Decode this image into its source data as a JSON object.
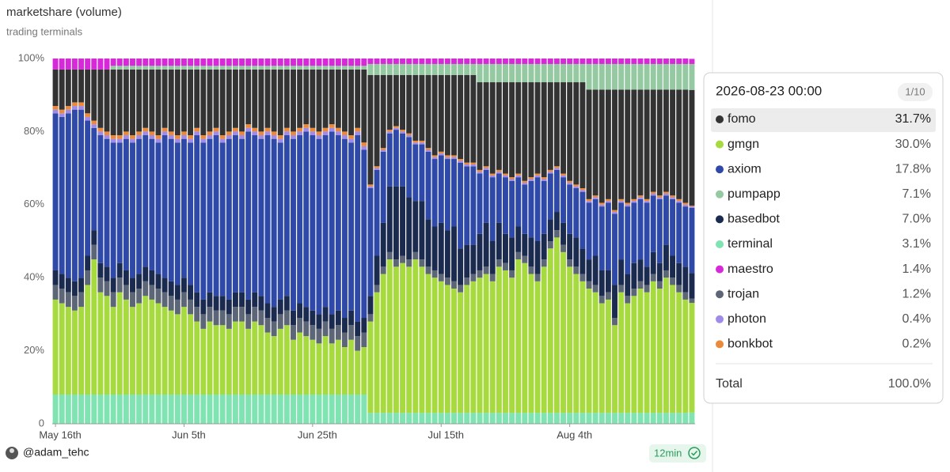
{
  "chart_data": {
    "type": "bar",
    "stacked": true,
    "title": "marketshare (volume)",
    "subtitle": "trading terminals",
    "categories": [
      "2026-05-16",
      "2026-05-17",
      "2026-05-18",
      "2026-05-19",
      "2026-05-20",
      "2026-05-21",
      "2026-05-22",
      "2026-05-23",
      "2026-05-24",
      "2026-05-25",
      "2026-05-26",
      "2026-05-27",
      "2026-05-28",
      "2026-05-29",
      "2026-05-30",
      "2026-05-31",
      "2026-06-01",
      "2026-06-02",
      "2026-06-03",
      "2026-06-04",
      "2026-06-05",
      "2026-06-06",
      "2026-06-07",
      "2026-06-08",
      "2026-06-09",
      "2026-06-10",
      "2026-06-11",
      "2026-06-12",
      "2026-06-13",
      "2026-06-14",
      "2026-06-15",
      "2026-06-16",
      "2026-06-17",
      "2026-06-18",
      "2026-06-19",
      "2026-06-20",
      "2026-06-21",
      "2026-06-22",
      "2026-06-23",
      "2026-06-24",
      "2026-06-25",
      "2026-06-26",
      "2026-06-27",
      "2026-06-28",
      "2026-06-29",
      "2026-06-30",
      "2026-07-01",
      "2026-07-02",
      "2026-07-03",
      "2026-07-04",
      "2026-07-05",
      "2026-07-06",
      "2026-07-07",
      "2026-07-08",
      "2026-07-09",
      "2026-07-10",
      "2026-07-11",
      "2026-07-12",
      "2026-07-13",
      "2026-07-14",
      "2026-07-15",
      "2026-07-16",
      "2026-07-17",
      "2026-07-18",
      "2026-07-19",
      "2026-07-20",
      "2026-07-21",
      "2026-07-22",
      "2026-07-23",
      "2026-07-24",
      "2026-07-25",
      "2026-07-26",
      "2026-07-27",
      "2026-07-28",
      "2026-07-29",
      "2026-07-30",
      "2026-07-31",
      "2026-08-01",
      "2026-08-02",
      "2026-08-03",
      "2026-08-04",
      "2026-08-05",
      "2026-08-06",
      "2026-08-07",
      "2026-08-08",
      "2026-08-09",
      "2026-08-10",
      "2026-08-11",
      "2026-08-12",
      "2026-08-13",
      "2026-08-14",
      "2026-08-15",
      "2026-08-16",
      "2026-08-17",
      "2026-08-18",
      "2026-08-19",
      "2026-08-20",
      "2026-08-21",
      "2026-08-22",
      "2026-08-23"
    ],
    "series": [
      {
        "name": "terminal",
        "color": "#7fe3b2",
        "values": [
          8,
          8,
          8,
          8,
          8,
          8,
          8,
          8,
          8,
          8,
          8,
          8,
          8,
          8,
          8,
          8,
          8,
          8,
          8,
          8,
          8,
          8,
          8,
          8,
          8,
          8,
          8,
          8,
          8,
          8,
          8,
          8,
          8,
          8,
          8,
          8,
          8,
          8,
          8,
          8,
          8,
          8,
          8,
          8,
          8,
          8,
          8,
          8,
          8,
          3,
          3,
          3,
          3,
          3,
          3,
          3,
          3,
          3,
          3,
          3,
          3,
          3,
          3,
          3,
          3,
          3,
          3,
          3,
          3,
          3,
          3,
          3,
          3,
          3,
          3,
          3,
          3,
          3,
          3,
          3,
          3,
          3,
          3,
          3,
          3,
          3,
          3,
          3,
          3,
          3,
          3,
          3,
          3,
          3,
          3,
          3,
          3,
          3,
          3,
          3.1
        ]
      },
      {
        "name": "gmgn",
        "color": "#a7da3e",
        "values": [
          26,
          25,
          24,
          23,
          24,
          30,
          37,
          28,
          27,
          24,
          28,
          26,
          24,
          25,
          27,
          26,
          25,
          24,
          23,
          22,
          24,
          22,
          20,
          18,
          20,
          19,
          19,
          18,
          20,
          20,
          18,
          20,
          19,
          17,
          16,
          18,
          19,
          15,
          17,
          16,
          15,
          14,
          16,
          14,
          15,
          13,
          15,
          12,
          13,
          25,
          33,
          38,
          42,
          40,
          41,
          40,
          42,
          40,
          38,
          37,
          36,
          35,
          34,
          33,
          35,
          36,
          37,
          38,
          36,
          40,
          39,
          37,
          42,
          41,
          38,
          36,
          40,
          45,
          48,
          44,
          40,
          38,
          36,
          34,
          33,
          30,
          31,
          24,
          33,
          30,
          32,
          34,
          33,
          36,
          34,
          37,
          35,
          33,
          31,
          30.0
        ]
      },
      {
        "name": "trojan",
        "color": "#5d6676",
        "values": [
          4,
          4,
          4,
          4,
          4,
          4,
          4,
          4,
          4,
          4,
          4,
          4,
          4,
          4,
          4,
          4,
          4,
          4,
          4,
          4,
          4,
          4,
          4,
          4,
          4,
          4,
          4,
          4,
          4,
          4,
          4,
          4,
          4,
          4,
          4,
          4,
          4,
          4,
          4,
          4,
          4,
          4,
          4,
          4,
          4,
          4,
          4,
          4,
          4,
          2,
          2,
          2,
          2,
          2,
          2,
          2,
          2,
          2,
          2,
          2,
          2,
          2,
          2,
          2,
          2,
          2,
          2,
          2,
          2,
          2,
          2,
          2,
          2,
          2,
          2,
          2,
          2,
          2,
          2,
          2,
          2,
          2,
          2,
          2,
          2,
          2,
          2,
          2,
          2,
          2,
          2,
          2,
          2,
          2,
          2,
          2,
          2,
          2,
          2,
          1.2
        ]
      },
      {
        "name": "basedbot",
        "color": "#1b2a4f",
        "values": [
          4,
          4,
          4,
          4,
          4,
          4,
          4,
          4,
          4,
          4,
          4,
          4,
          4,
          4,
          4,
          4,
          4,
          4,
          4,
          4,
          4,
          4,
          4,
          4,
          4,
          4,
          4,
          4,
          4,
          4,
          4,
          4,
          4,
          4,
          4,
          4,
          4,
          4,
          4,
          4,
          4,
          4,
          4,
          4,
          4,
          4,
          4,
          4,
          4,
          5,
          8,
          12,
          18,
          20,
          19,
          17,
          14,
          16,
          13,
          12,
          14,
          13,
          15,
          10,
          9,
          8,
          10,
          12,
          9,
          10,
          8,
          9,
          7,
          6,
          8,
          9,
          7,
          6,
          5,
          6,
          7,
          8,
          7,
          6,
          8,
          7,
          6,
          9,
          7,
          6,
          7,
          6,
          5,
          6,
          5,
          7,
          6,
          6,
          7,
          7.0
        ]
      },
      {
        "name": "axiom",
        "color": "#2f49a8",
        "values": [
          43,
          43,
          45,
          47,
          46,
          37,
          28,
          35,
          35,
          37,
          33,
          36,
          37,
          37,
          36,
          36,
          36,
          39,
          39,
          39,
          38,
          39,
          43,
          43,
          42,
          44,
          42,
          44,
          43,
          42,
          46,
          43,
          43,
          46,
          46,
          43,
          44,
          47,
          46,
          48,
          48,
          48,
          47,
          50,
          48,
          49,
          46,
          51,
          46,
          29.5,
          23.5,
          19.5,
          14.5,
          15.5,
          14.5,
          16.5,
          15.5,
          15.5,
          18.5,
          18.5,
          18.5,
          19.5,
          18.5,
          23.5,
          21.5,
          21.5,
          16.5,
          14.5,
          17.5,
          13.5,
          15.5,
          15.5,
          13.5,
          13.5,
          15.5,
          17.5,
          14.5,
          12.5,
          11.5,
          12.5,
          13.5,
          13.5,
          15.5,
          15.5,
          15.5,
          17.5,
          18.5,
          19.5,
          15.5,
          18.5,
          16.5,
          16.5,
          17.5,
          15.5,
          17.5,
          13.5,
          15.5,
          16.5,
          16.5,
          17.8
        ]
      },
      {
        "name": "photon",
        "color": "#a08ce8",
        "values": [
          1,
          1,
          1,
          1,
          1,
          1,
          1,
          1,
          1,
          1,
          1,
          1,
          1,
          1,
          1,
          1,
          1,
          1,
          1,
          1,
          1,
          1,
          1,
          1,
          1,
          1,
          1,
          1,
          1,
          1,
          1,
          1,
          1,
          1,
          1,
          1,
          1,
          1,
          1,
          1,
          1,
          1,
          1,
          1,
          1,
          1,
          1,
          1,
          1,
          0.5,
          0.5,
          0.5,
          0.5,
          0.5,
          0.5,
          0.5,
          0.5,
          0.5,
          0.5,
          0.5,
          0.5,
          0.5,
          0.5,
          0.5,
          0.5,
          0.5,
          0.5,
          0.5,
          0.5,
          0.5,
          0.5,
          0.5,
          0.5,
          0.5,
          0.5,
          0.5,
          0.5,
          0.5,
          0.5,
          0.5,
          0.5,
          0.5,
          0.5,
          0.5,
          0.5,
          0.5,
          0.5,
          0.5,
          0.5,
          0.5,
          0.5,
          0.5,
          0.5,
          0.5,
          0.5,
          0.5,
          0.5,
          0.5,
          0.5,
          0.4
        ]
      },
      {
        "name": "bonkbot",
        "color": "#ea8a3a",
        "values": [
          1,
          1,
          1,
          1,
          1,
          1,
          1,
          1,
          1,
          1,
          1,
          1,
          1,
          1,
          1,
          1,
          1,
          1,
          1,
          1,
          1,
          1,
          1,
          1,
          1,
          1,
          1,
          1,
          1,
          1,
          1,
          1,
          1,
          1,
          1,
          1,
          1,
          1,
          1,
          1,
          1,
          1,
          1,
          1,
          1,
          1,
          1,
          1,
          1,
          0.5,
          0.5,
          0.5,
          0.5,
          0.5,
          0.5,
          0.5,
          0.5,
          0.5,
          0.5,
          0.5,
          0.5,
          0.5,
          0.5,
          0.5,
          0.5,
          0.5,
          0.5,
          0.5,
          0.5,
          0.5,
          0.5,
          0.5,
          0.5,
          0.5,
          0.5,
          0.5,
          0.5,
          0.5,
          0.5,
          0.5,
          0.5,
          0.5,
          0.5,
          0.5,
          0.5,
          0.5,
          0.5,
          0.5,
          0.5,
          0.5,
          0.5,
          0.5,
          0.5,
          0.5,
          0.5,
          0.5,
          0.5,
          0.5,
          0.5,
          0.2
        ]
      },
      {
        "name": "fomo",
        "color": "#333333",
        "values": [
          10,
          11,
          10,
          9,
          9,
          12,
          14,
          16,
          17,
          18,
          18,
          17,
          18,
          17,
          16,
          17,
          18,
          16,
          17,
          18,
          17,
          18,
          16,
          18,
          17,
          16,
          18,
          17,
          16,
          17,
          15,
          16,
          17,
          16,
          17,
          18,
          16,
          17,
          16,
          15,
          16,
          17,
          16,
          15,
          16,
          17,
          18,
          16,
          20,
          30,
          25,
          20,
          15,
          14,
          15,
          16,
          18,
          18,
          20,
          22,
          21,
          22,
          22,
          23,
          24,
          24,
          24,
          23,
          25,
          24,
          25,
          26,
          25,
          27,
          26,
          25,
          26,
          24,
          23,
          25,
          27,
          28,
          29,
          30,
          29,
          31,
          30,
          33,
          30,
          31,
          30,
          29,
          30,
          28,
          29,
          28,
          29,
          30,
          31,
          31.7
        ]
      },
      {
        "name": "pumpapp",
        "color": "#94c9a1",
        "values": [
          0,
          0,
          0,
          0,
          0,
          0,
          0,
          0,
          0,
          1,
          1,
          1,
          1,
          1,
          1,
          1,
          1,
          1,
          1,
          1,
          1,
          1,
          1,
          1,
          1,
          1,
          1,
          1,
          1,
          1,
          1,
          1,
          1,
          1,
          1,
          1,
          1,
          1,
          1,
          1,
          1,
          1,
          1,
          1,
          1,
          1,
          1,
          1,
          1,
          3,
          3,
          3,
          3,
          3,
          3,
          3,
          3,
          3,
          3,
          3,
          3,
          3,
          3,
          3,
          3,
          3,
          5,
          5,
          5,
          5,
          5,
          5,
          5,
          5,
          5,
          5,
          5,
          5,
          5,
          5,
          5,
          5,
          5,
          7,
          7,
          7,
          7,
          7,
          7,
          7,
          7,
          7,
          7,
          7,
          7,
          7,
          7,
          7,
          7,
          7.1
        ]
      },
      {
        "name": "maestro",
        "color": "#d62ad8",
        "values": [
          3,
          3,
          3,
          3,
          3,
          3,
          3,
          3,
          3,
          2,
          2,
          2,
          2,
          2,
          2,
          2,
          2,
          2,
          2,
          2,
          2,
          2,
          2,
          2,
          2,
          2,
          2,
          2,
          2,
          2,
          2,
          2,
          2,
          2,
          2,
          2,
          2,
          2,
          2,
          2,
          2,
          2,
          2,
          2,
          2,
          2,
          2,
          2,
          2,
          1.5,
          1.5,
          1.5,
          1.5,
          1.5,
          1.5,
          1.5,
          1.5,
          1.5,
          1.5,
          1.5,
          1.5,
          1.5,
          1.5,
          1.5,
          1.5,
          1.5,
          1.5,
          1.5,
          1.5,
          1.5,
          1.5,
          1.5,
          1.5,
          1.5,
          1.5,
          1.5,
          1.5,
          1.5,
          1.5,
          1.5,
          1.5,
          1.5,
          1.5,
          1.5,
          1.5,
          1.5,
          1.5,
          1.5,
          1.5,
          1.5,
          1.5,
          1.5,
          1.5,
          1.5,
          1.5,
          1.5,
          1.5,
          1.5,
          1.5,
          1.4
        ]
      }
    ],
    "ylim": [
      0,
      100
    ],
    "yticks": [
      0,
      {
        "value": 20,
        "label": "20%"
      },
      {
        "value": 40,
        "label": "40%"
      },
      {
        "value": 60,
        "label": "60%"
      },
      {
        "value": 80,
        "label": "80%"
      },
      {
        "value": 100,
        "label": "100%"
      }
    ],
    "xticks": [
      {
        "value": "2026-05-16",
        "label": "May 16th"
      },
      {
        "value": "2026-06-05",
        "label": "Jun 5th"
      },
      {
        "value": "2026-06-25",
        "label": "Jun 25th"
      },
      {
        "value": "2026-07-15",
        "label": "Jul 15th"
      },
      {
        "value": "2026-08-04",
        "label": "Aug 4th"
      }
    ]
  },
  "tooltip": {
    "title": "2026-08-23 00:00",
    "page": "1/10",
    "rows": [
      {
        "name": "fomo",
        "label": "31.7%"
      },
      {
        "name": "gmgn",
        "label": "30.0%"
      },
      {
        "name": "axiom",
        "label": "17.8%"
      },
      {
        "name": "pumpapp",
        "label": "7.1%"
      },
      {
        "name": "basedbot",
        "label": "7.0%"
      },
      {
        "name": "terminal",
        "label": "3.1%"
      },
      {
        "name": "maestro",
        "label": "1.4%"
      },
      {
        "name": "trojan",
        "label": "1.2%"
      },
      {
        "name": "photon",
        "label": "0.4%"
      },
      {
        "name": "bonkbot",
        "label": "0.2%"
      }
    ],
    "total_name": "Total",
    "total_label": "100.0%"
  },
  "footer": {
    "user": "@adam_tehc",
    "age": "12min"
  }
}
